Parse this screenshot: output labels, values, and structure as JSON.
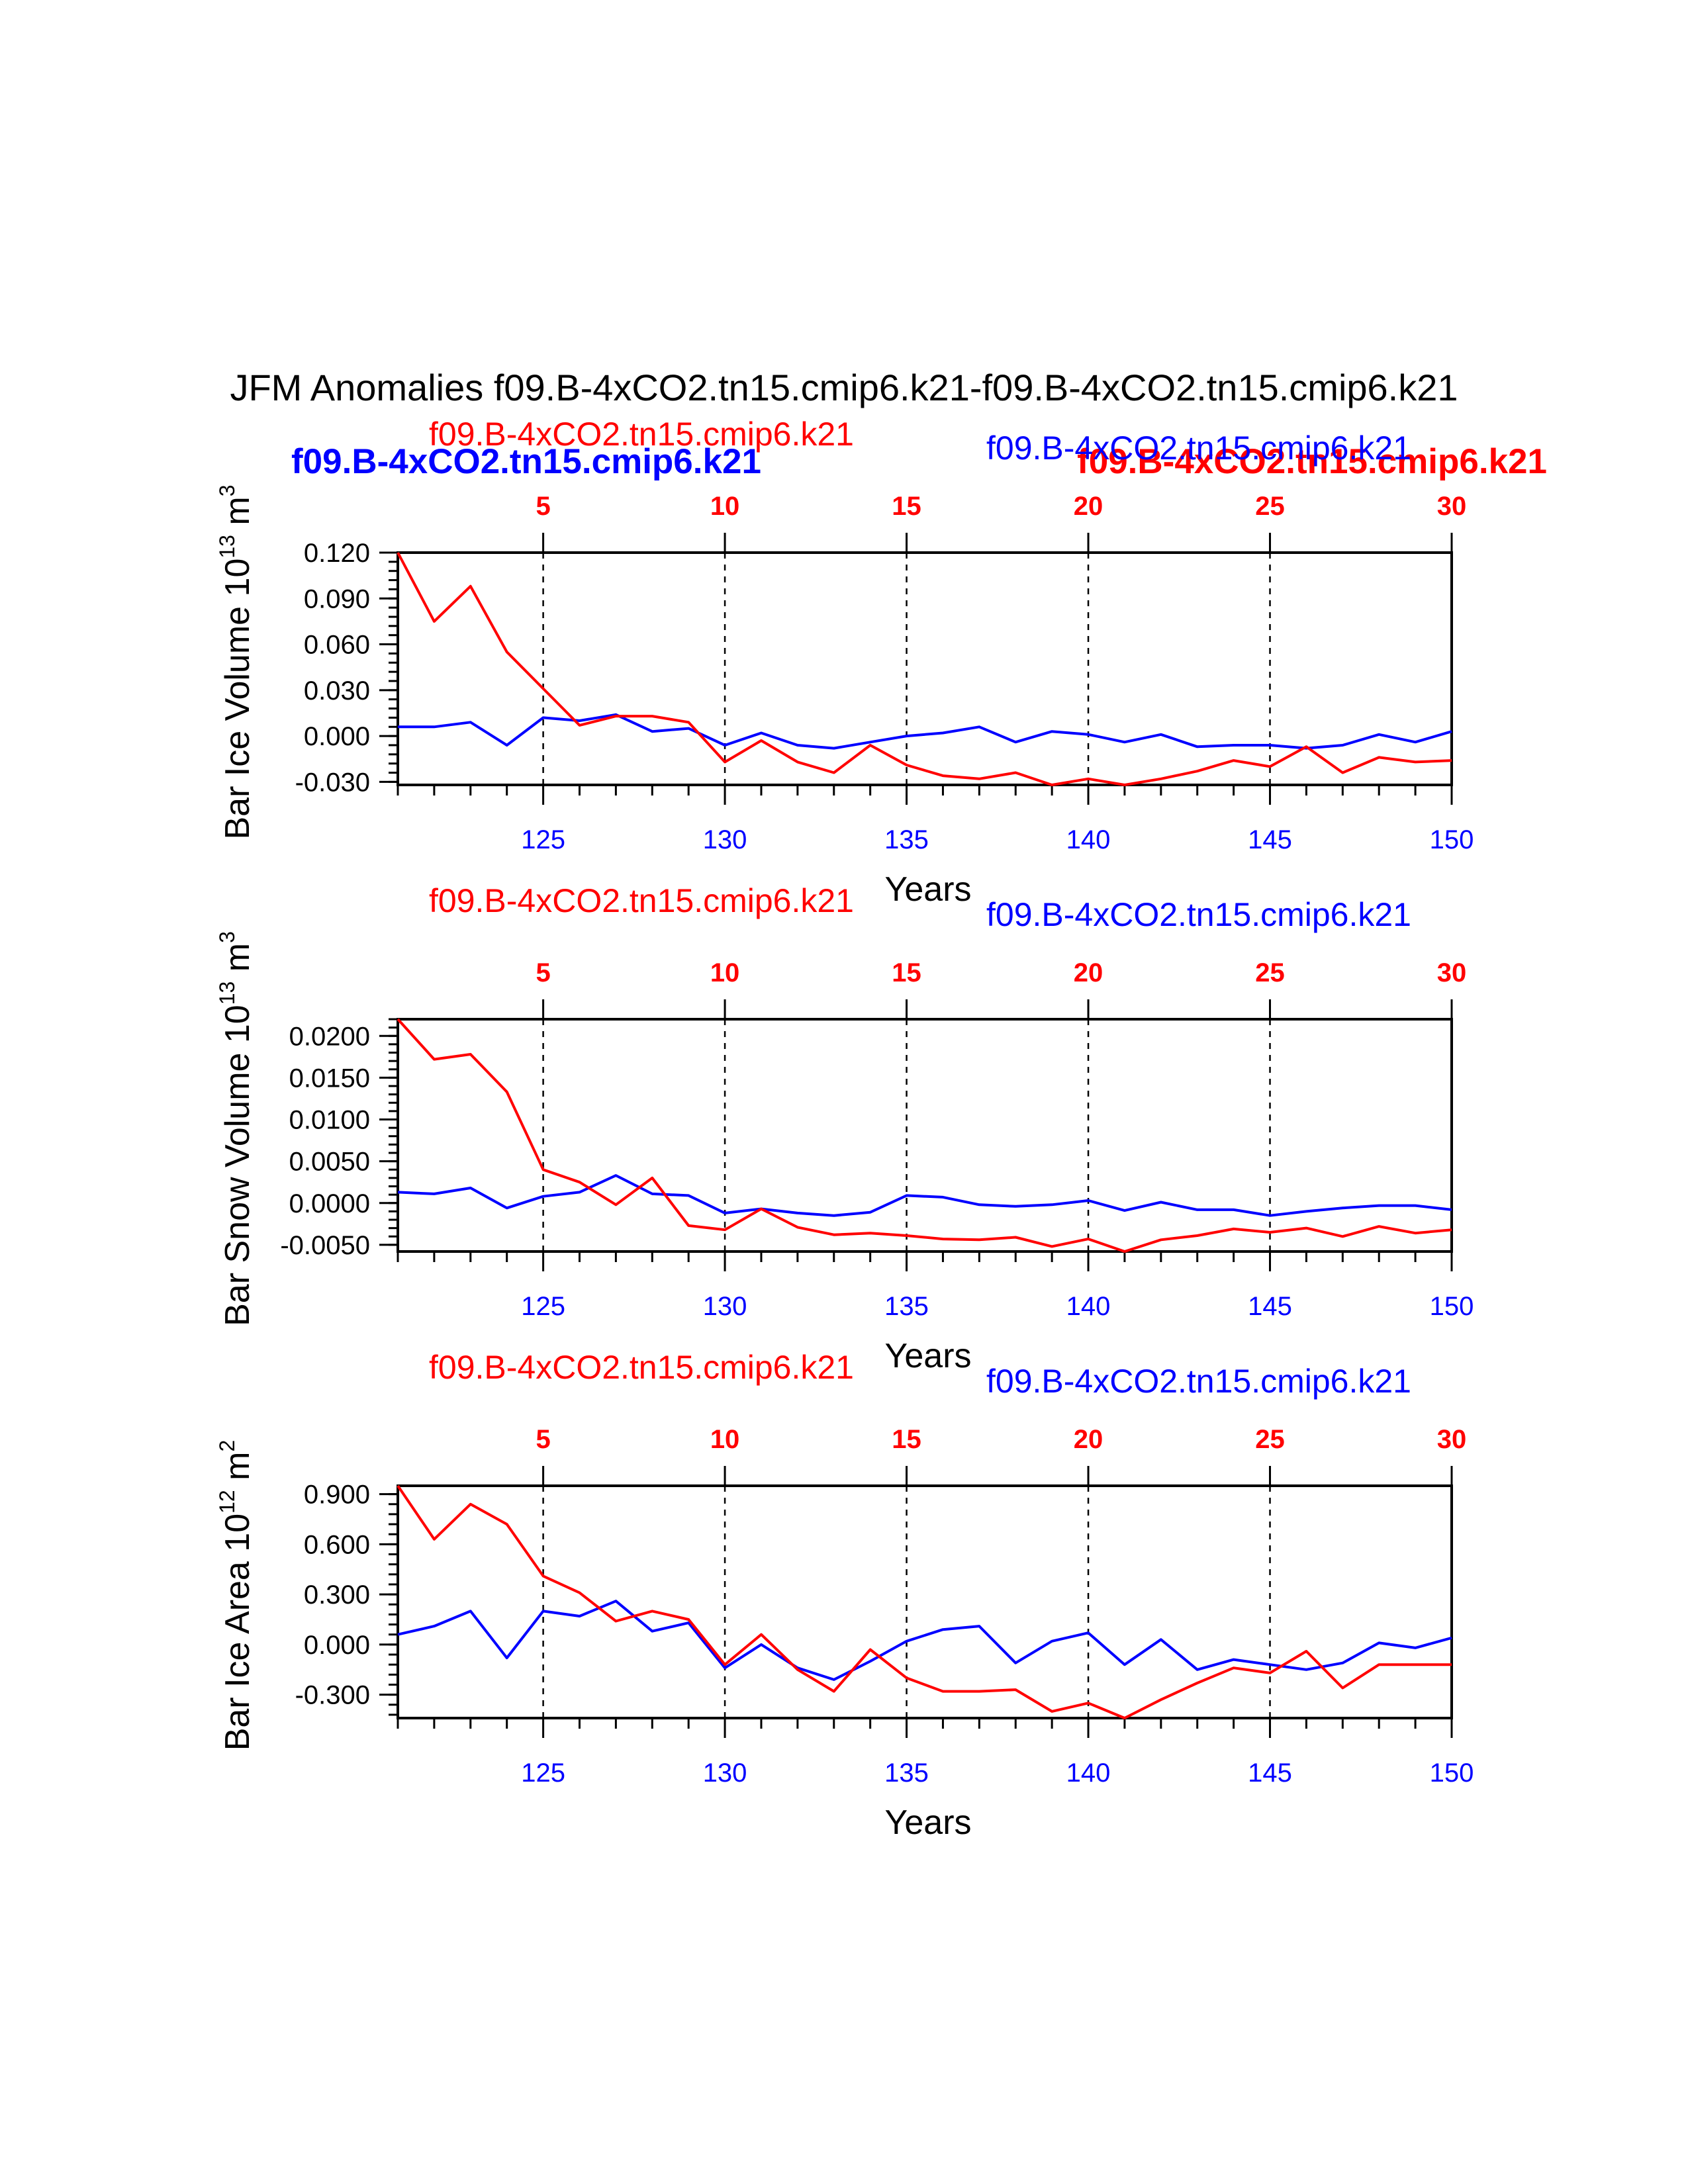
{
  "page_title": "JFM Anomalies f09.B-4xCO2.tn15.cmip6.k21-f09.B-4xCO2.tn15.cmip6.k21",
  "colors": {
    "case1": "#ff0000",
    "case2": "#0000ff",
    "axis": "#000000"
  },
  "top_header": {
    "bold_blue": "f09.B-4xCO2.tn15.cmip6.k21",
    "bold_red": "f09.B-4xCO2.tn15.cmip6.k21"
  },
  "chart_data": [
    {
      "type": "line",
      "ylabel": "Bar Ice Volume 10",
      "ylabel_exp": "13",
      "ylabel_unit": " m",
      "ylabel_unit_exp": "3",
      "xlabel": "Years",
      "case_label_red": "f09.B-4xCO2.tn15.cmip6.k21",
      "case_label_blue": "f09.B-4xCO2.tn15.cmip6.k21",
      "ylim": [
        -0.032,
        0.12
      ],
      "yticks": [
        0.12,
        0.09,
        0.06,
        0.03,
        0.0,
        -0.03
      ],
      "ytick_labels": [
        "0.120",
        "0.090",
        "0.060",
        "0.030",
        "0.000",
        "-0.030"
      ],
      "x_bottom": {
        "range": [
          121,
          150
        ],
        "ticks": [
          125,
          130,
          135,
          140,
          145,
          150
        ],
        "labels": [
          "125",
          "130",
          "135",
          "140",
          "145",
          "150"
        ]
      },
      "x_top": {
        "range": [
          1,
          30
        ],
        "ticks": [
          5,
          10,
          15,
          20,
          25,
          30
        ],
        "labels": [
          "5",
          "10",
          "15",
          "20",
          "25",
          "30"
        ]
      },
      "series": [
        {
          "name": "red",
          "values": [
            0.12,
            0.075,
            0.098,
            0.055,
            0.031,
            0.007,
            0.013,
            0.013,
            0.009,
            -0.017,
            -0.003,
            -0.017,
            -0.024,
            -0.006,
            -0.019,
            -0.026,
            -0.028,
            -0.024,
            -0.032,
            -0.028,
            -0.032,
            -0.028,
            -0.023,
            -0.016,
            -0.02,
            -0.007,
            -0.024,
            -0.014,
            -0.017,
            -0.016
          ]
        },
        {
          "name": "blue",
          "values": [
            0.006,
            0.006,
            0.009,
            -0.006,
            0.012,
            0.01,
            0.014,
            0.003,
            0.005,
            -0.006,
            0.002,
            -0.006,
            -0.008,
            -0.004,
            0.0,
            0.002,
            0.006,
            -0.004,
            0.003,
            0.001,
            -0.004,
            0.001,
            -0.007,
            -0.006,
            -0.006,
            -0.008,
            -0.006,
            0.001,
            -0.004,
            0.003
          ]
        }
      ]
    },
    {
      "type": "line",
      "ylabel": "Bar Snow Volume 10",
      "ylabel_exp": "13",
      "ylabel_unit": " m",
      "ylabel_unit_exp": "3",
      "xlabel": "Years",
      "case_label_red": "f09.B-4xCO2.tn15.cmip6.k21",
      "case_label_blue": "f09.B-4xCO2.tn15.cmip6.k21",
      "ylim": [
        -0.0058,
        0.022
      ],
      "yticks": [
        0.02,
        0.015,
        0.01,
        0.005,
        0.0,
        -0.005
      ],
      "ytick_labels": [
        "0.0200",
        "0.0150",
        "0.0100",
        "0.0050",
        "0.0000",
        "-0.0050"
      ],
      "x_bottom": {
        "range": [
          121,
          150
        ],
        "ticks": [
          125,
          130,
          135,
          140,
          145,
          150
        ],
        "labels": [
          "125",
          "130",
          "135",
          "140",
          "145",
          "150"
        ]
      },
      "x_top": {
        "range": [
          1,
          30
        ],
        "ticks": [
          5,
          10,
          15,
          20,
          25,
          30
        ],
        "labels": [
          "5",
          "10",
          "15",
          "20",
          "25",
          "30"
        ]
      },
      "series": [
        {
          "name": "red",
          "values": [
            0.022,
            0.0172,
            0.0178,
            0.0133,
            0.004,
            0.0025,
            -0.0002,
            0.003,
            -0.0027,
            -0.0032,
            -0.0007,
            -0.0029,
            -0.0038,
            -0.0036,
            -0.0039,
            -0.0043,
            -0.0044,
            -0.0041,
            -0.0052,
            -0.0043,
            -0.0058,
            -0.0044,
            -0.0039,
            -0.0031,
            -0.0035,
            -0.003,
            -0.004,
            -0.0028,
            -0.0036,
            -0.0032
          ]
        },
        {
          "name": "blue",
          "values": [
            0.0013,
            0.0011,
            0.0018,
            -0.0006,
            0.0008,
            0.0013,
            0.0033,
            0.0011,
            0.0009,
            -0.0012,
            -0.0007,
            -0.0012,
            -0.0015,
            -0.0011,
            0.0009,
            0.0007,
            -0.0002,
            -0.0004,
            -0.0002,
            0.0003,
            -0.0009,
            0.0001,
            -0.0008,
            -0.0008,
            -0.0015,
            -0.001,
            -0.0006,
            -0.0003,
            -0.0003,
            -0.0008
          ]
        }
      ]
    },
    {
      "type": "line",
      "ylabel": "Bar Ice Area 10",
      "ylabel_exp": "12",
      "ylabel_unit": " m",
      "ylabel_unit_exp": "2",
      "xlabel": "Years",
      "case_label_red": "f09.B-4xCO2.tn15.cmip6.k21",
      "case_label_blue": "f09.B-4xCO2.tn15.cmip6.k21",
      "ylim": [
        -0.44,
        0.95
      ],
      "yticks": [
        0.9,
        0.6,
        0.3,
        0.0,
        -0.3
      ],
      "ytick_labels": [
        "0.900",
        "0.600",
        "0.300",
        "0.000",
        "-0.300"
      ],
      "x_bottom": {
        "range": [
          121,
          150
        ],
        "ticks": [
          125,
          130,
          135,
          140,
          145,
          150
        ],
        "labels": [
          "125",
          "130",
          "135",
          "140",
          "145",
          "150"
        ]
      },
      "x_top": {
        "range": [
          1,
          30
        ],
        "ticks": [
          5,
          10,
          15,
          20,
          25,
          30
        ],
        "labels": [
          "5",
          "10",
          "15",
          "20",
          "25",
          "30"
        ]
      },
      "series": [
        {
          "name": "red",
          "values": [
            0.95,
            0.63,
            0.84,
            0.72,
            0.41,
            0.31,
            0.14,
            0.2,
            0.15,
            -0.12,
            0.06,
            -0.15,
            -0.28,
            -0.03,
            -0.2,
            -0.28,
            -0.28,
            -0.27,
            -0.4,
            -0.35,
            -0.44,
            -0.33,
            -0.23,
            -0.14,
            -0.17,
            -0.04,
            -0.26,
            -0.12,
            -0.12,
            -0.12
          ]
        },
        {
          "name": "blue",
          "values": [
            0.06,
            0.11,
            0.2,
            -0.08,
            0.2,
            0.17,
            0.26,
            0.08,
            0.13,
            -0.14,
            0.0,
            -0.14,
            -0.21,
            -0.1,
            0.02,
            0.09,
            0.11,
            -0.11,
            0.02,
            0.07,
            -0.12,
            0.03,
            -0.15,
            -0.09,
            -0.12,
            -0.15,
            -0.11,
            0.01,
            -0.02,
            0.04
          ]
        }
      ]
    }
  ]
}
